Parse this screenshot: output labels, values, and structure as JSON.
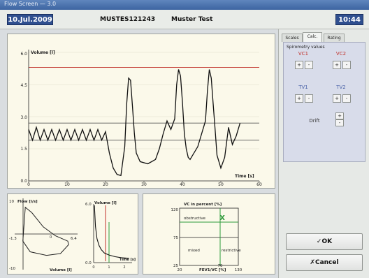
{
  "window": {
    "title": "Flow Screen — 3.0"
  },
  "header": {
    "date": "10.Jul.2009",
    "patient_id": "MUSTES121243",
    "patient_name": "Muster Test",
    "time": "10:44"
  },
  "tabs": [
    {
      "label": "Scales",
      "active": false
    },
    {
      "label": "Calc.",
      "active": true
    },
    {
      "label": "Rating",
      "active": false
    }
  ],
  "spirometry": {
    "title": "Spirometry values",
    "vc1": "VC1",
    "vc2": "VC2",
    "tv1": "TV1",
    "tv2": "TV2",
    "drift": "Drift",
    "plus": "+",
    "minus": "-"
  },
  "buttons": {
    "ok": "✓OK",
    "cancel": "✗Cancel"
  },
  "colors": {
    "reference_red": "#c0302a",
    "reference_green": "#2e9a3a",
    "header_blue": "#2f4f8f",
    "panel_bg": "#fbf9ea"
  },
  "volume_chart": {
    "ylabel": "Volume [l]",
    "xlabel": "Time [s]",
    "y_ticks": [
      "6.0",
      "4.5",
      "3.0",
      "1.5",
      "0.0"
    ],
    "x_ticks": [
      "0",
      "10",
      "20",
      "30",
      "40",
      "50",
      "60"
    ]
  },
  "flow_chart": {
    "ylabel": "Flow [l/s]",
    "xlabel": "Volume [l]",
    "y_top": "10",
    "y_bottom": "-10",
    "x_left": "-1.3",
    "x_right": "6.4",
    "y_mid": "0"
  },
  "vt_chart": {
    "ylabel": "Volume [l]",
    "xlabel": "Time [s]",
    "y_top": "6.0",
    "y_bottom": "0.0",
    "x_ticks": [
      "0",
      "1",
      "2"
    ]
  },
  "class_chart": {
    "ylabel": "VC in percent [%]",
    "xlabel": "FEV1/VC [%]",
    "y_ticks": [
      "120",
      "75",
      "25"
    ],
    "x_ticks": [
      "20",
      "70",
      "130"
    ],
    "quadrants": {
      "top_left": "obstructive",
      "bottom_left": "mixed",
      "bottom_right": "restrictive"
    },
    "marker": "X"
  },
  "chart_data": [
    {
      "type": "line",
      "ylabel": "Volume [l]",
      "xlabel": "Time [s]",
      "xlim": [
        0,
        60
      ],
      "ylim": [
        0,
        6
      ],
      "x_ticks": [
        0,
        10,
        20,
        30,
        40,
        50,
        60
      ],
      "y_ticks": [
        0,
        1.5,
        3,
        4.5,
        6
      ],
      "reference_lines": [
        5.3,
        2.7,
        1.9
      ],
      "series": [
        {
          "x": [
            0,
            1,
            2,
            3,
            4,
            5,
            6,
            7,
            8,
            9,
            10,
            11,
            12,
            13,
            14,
            15,
            16,
            17,
            18,
            19,
            20,
            21,
            22,
            23,
            24,
            25,
            25.5,
            26,
            26.5,
            27,
            27.5,
            28,
            29,
            31,
            33,
            34,
            35,
            36,
            37,
            38,
            38.5,
            39,
            39.5,
            40,
            40.5,
            41,
            41.5,
            42,
            44,
            46,
            46.5,
            47,
            47.5,
            48,
            48.5,
            49,
            50,
            51,
            52,
            53,
            54,
            55
          ],
          "y": [
            2.4,
            1.9,
            2.5,
            1.9,
            2.4,
            1.9,
            2.4,
            1.9,
            2.4,
            1.9,
            2.4,
            1.9,
            2.4,
            1.9,
            2.4,
            1.9,
            2.4,
            1.9,
            2.4,
            1.9,
            2.3,
            1.3,
            0.6,
            0.3,
            0.25,
            1.6,
            3.6,
            4.8,
            4.7,
            3.5,
            2.2,
            1.3,
            0.9,
            0.8,
            1.0,
            1.5,
            2.2,
            2.8,
            2.4,
            2.9,
            4.5,
            5.2,
            4.9,
            3.7,
            2.2,
            1.5,
            1.1,
            1.0,
            1.6,
            2.8,
            4.2,
            5.2,
            4.8,
            3.6,
            2.4,
            1.2,
            0.6,
            1.1,
            2.5,
            1.7,
            2.1,
            2.7
          ]
        }
      ]
    },
    {
      "type": "line",
      "ylabel": "Flow [l/s]",
      "xlabel": "Volume [l]",
      "xlim": [
        -1.3,
        6.4
      ],
      "ylim": [
        -10,
        10
      ],
      "series": [
        {
          "x": [
            0,
            0.8,
            2.2,
            3.7,
            5.2,
            5.3,
            4.3,
            2.6,
            0.6,
            -0.3,
            0
          ],
          "y": [
            7.5,
            6,
            2,
            -0.5,
            -2,
            -3,
            -5.5,
            -6,
            -5,
            -2,
            7.5
          ]
        }
      ]
    },
    {
      "type": "line",
      "ylabel": "Volume [l]",
      "xlabel": "Time [s]",
      "xlim": [
        0,
        2.5
      ],
      "ylim": [
        0,
        6
      ],
      "x_ticks": [
        0,
        1,
        2
      ],
      "series": [
        {
          "x": [
            0.05,
            0.12,
            0.22,
            0.35,
            0.5,
            0.7,
            1.0,
            1.4,
            1.8,
            2.3
          ],
          "y": [
            6,
            3.8,
            2.5,
            1.8,
            1.35,
            1.0,
            0.8,
            0.62,
            0.52,
            0.45
          ]
        }
      ]
    },
    {
      "type": "scatter",
      "ylabel": "VC in percent [%]",
      "xlabel": "FEV1/VC [%]",
      "x_ticks": [
        20,
        70,
        130
      ],
      "y_ticks": [
        25,
        75,
        120
      ],
      "xlim": [
        20,
        130
      ],
      "ylim": [
        25,
        120
      ],
      "points": [
        {
          "x": 100,
          "y": 105,
          "label": "X"
        }
      ]
    }
  ]
}
